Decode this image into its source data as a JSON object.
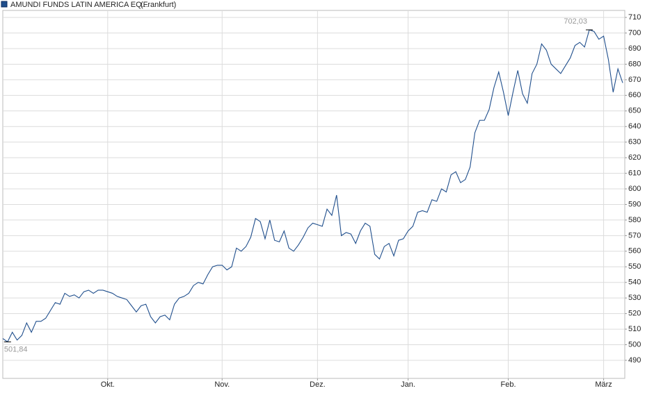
{
  "chart_data": {
    "type": "line",
    "series": [
      {
        "name": "AMUNDI FUNDS LATIN AMERICA EQ...",
        "color": "#1f4e8c",
        "values": [
          504,
          501.84,
          508,
          503,
          506,
          514,
          508,
          515,
          515,
          517,
          522,
          527,
          526,
          533,
          531,
          532,
          530,
          534,
          535,
          533,
          535,
          535,
          534,
          533,
          531,
          530,
          529,
          525,
          521,
          525,
          526,
          518,
          514,
          518,
          519,
          516,
          526,
          530,
          531,
          533,
          538,
          540,
          539,
          545,
          550,
          551,
          551,
          548,
          550,
          562,
          560,
          563,
          569,
          581,
          579,
          568,
          580,
          567,
          566,
          573,
          562,
          560,
          564,
          569,
          575,
          578,
          577,
          576,
          587,
          583,
          596,
          570,
          572,
          571,
          565,
          573,
          578,
          576,
          558,
          555,
          563,
          565,
          557,
          567,
          568,
          573,
          576,
          585,
          586,
          585,
          593,
          592,
          600,
          598,
          609,
          611,
          604,
          606,
          614,
          636,
          644,
          644,
          651,
          665,
          675,
          662,
          647,
          662,
          676,
          661,
          655,
          674,
          680,
          693,
          689,
          680,
          677,
          674,
          679,
          684,
          692,
          694,
          691,
          702.03,
          701,
          696,
          698,
          683,
          662,
          677,
          668
        ],
        "value_labels": [
          null,
          "501,84",
          null,
          null,
          null,
          null,
          null,
          null,
          null,
          null,
          null,
          null,
          null,
          null,
          null,
          null,
          null,
          null,
          null,
          null,
          null,
          null,
          null,
          null,
          null,
          null,
          null,
          null,
          null,
          null,
          null,
          null,
          null,
          null,
          null,
          null,
          null,
          null,
          null,
          null,
          null,
          null,
          null,
          null,
          null,
          null,
          null,
          null,
          null,
          null,
          null,
          null,
          null,
          null,
          null,
          null,
          null,
          null,
          null,
          null,
          null,
          null,
          null,
          null,
          null,
          null,
          null,
          null,
          null,
          null,
          null,
          null,
          null,
          null,
          null,
          null,
          null,
          null,
          null,
          null,
          null,
          null,
          null,
          null,
          null,
          null,
          null,
          null,
          null,
          null,
          null,
          null,
          null,
          null,
          null,
          null,
          null,
          null,
          null,
          null,
          null,
          null,
          null,
          null,
          null,
          null,
          null,
          null,
          null,
          null,
          null,
          null,
          null,
          null,
          null,
          null,
          null,
          null,
          null,
          null,
          null,
          null,
          null,
          "702,03",
          null,
          null,
          null,
          null,
          null,
          null,
          null
        ]
      }
    ],
    "exchange": "(Frankfurt)",
    "categories": [
      null,
      null,
      null,
      null,
      null,
      null,
      null,
      null,
      null,
      null,
      null,
      null,
      null,
      null,
      null,
      null,
      null,
      null,
      null,
      null,
      null,
      null,
      "Okt.",
      null,
      null,
      null,
      null,
      null,
      null,
      null,
      null,
      null,
      null,
      null,
      null,
      null,
      null,
      null,
      null,
      null,
      null,
      null,
      null,
      null,
      null,
      null,
      "Nov.",
      null,
      null,
      null,
      null,
      null,
      null,
      null,
      null,
      null,
      null,
      null,
      null,
      null,
      null,
      null,
      null,
      null,
      null,
      null,
      "Dez.",
      null,
      null,
      null,
      null,
      null,
      null,
      null,
      null,
      null,
      null,
      null,
      null,
      null,
      null,
      null,
      null,
      null,
      null,
      "Jan.",
      null,
      null,
      null,
      null,
      null,
      null,
      null,
      null,
      null,
      null,
      null,
      null,
      null,
      null,
      null,
      null,
      null,
      null,
      null,
      null,
      "Feb.",
      null,
      null,
      null,
      null,
      null,
      null,
      null,
      null,
      null,
      null,
      null,
      null,
      null,
      null,
      null,
      null,
      null,
      null,
      null,
      "März",
      null,
      null,
      null,
      null
    ],
    "ylim": [
      478.4,
      714.5
    ],
    "yticks": [
      490,
      500,
      510,
      520,
      530,
      540,
      550,
      560,
      570,
      580,
      590,
      600,
      610,
      620,
      630,
      640,
      650,
      660,
      670,
      680,
      690,
      700,
      710
    ],
    "grid": true
  }
}
